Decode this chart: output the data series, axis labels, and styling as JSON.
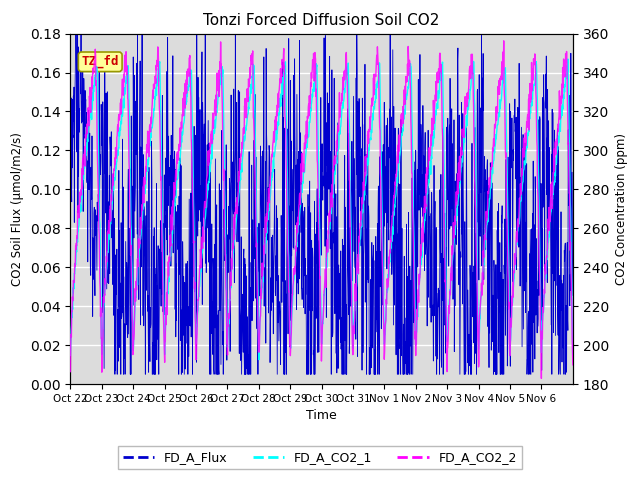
{
  "title": "Tonzi Forced Diffusion Soil CO2",
  "xlabel": "Time",
  "ylabel_left": "CO2 Soil Flux (μmol/m2/s)",
  "ylabel_right": "CO2 Concentration (ppm)",
  "ylim_left": [
    0.0,
    0.18
  ],
  "ylim_right": [
    180,
    360
  ],
  "yticks_left": [
    0.0,
    0.02,
    0.04,
    0.06,
    0.08,
    0.1,
    0.12,
    0.14,
    0.16,
    0.18
  ],
  "yticks_right": [
    180,
    200,
    220,
    240,
    260,
    280,
    300,
    320,
    340,
    360
  ],
  "xtick_labels": [
    "Oct 22",
    "Oct 23",
    "Oct 24",
    "Oct 25",
    "Oct 26",
    "Oct 27",
    "Oct 28",
    "Oct 29",
    "Oct 30",
    "Oct 31",
    "Nov 1",
    "Nov 2",
    "Nov 3",
    "Nov 4",
    "Nov 5",
    "Nov 6"
  ],
  "color_flux": "#0000CD",
  "color_co2_1": "#00FFFF",
  "color_co2_2": "#FF00FF",
  "legend_labels": [
    "FD_A_Flux",
    "FD_A_CO2_1",
    "FD_A_CO2_2"
  ],
  "watermark_text": "TZ_fd",
  "watermark_color": "#CC0000",
  "watermark_bg": "#FFFF99",
  "background_color": "#DCDCDC",
  "n_days": 16,
  "n_pts_per_day": 96
}
